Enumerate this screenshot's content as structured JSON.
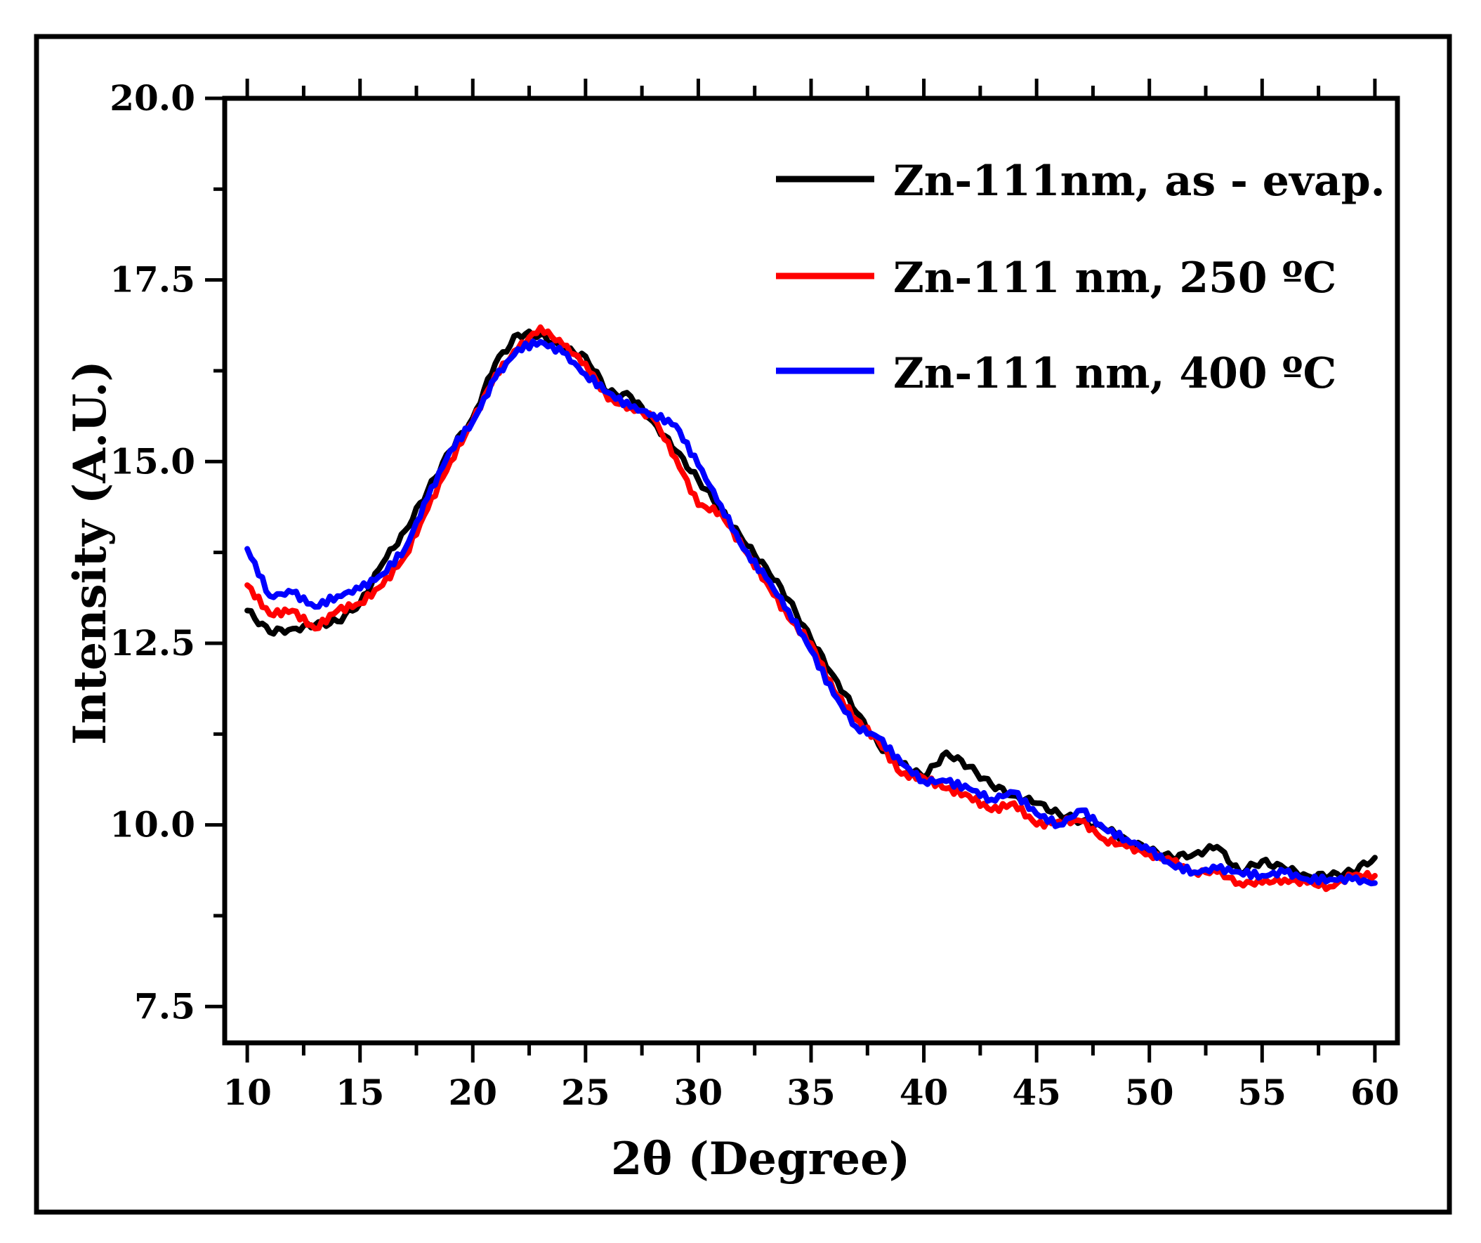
{
  "chart_data": {
    "type": "line",
    "title": "",
    "xlabel": "2θ (Degree)",
    "ylabel": "Intensity (A.U.)",
    "xlim": [
      9,
      61
    ],
    "ylim": [
      7,
      20
    ],
    "x_ticks": [
      10,
      15,
      20,
      25,
      30,
      35,
      40,
      45,
      50,
      55,
      60
    ],
    "x_tick_labels": [
      "10",
      "15",
      "20",
      "25",
      "30",
      "35",
      "40",
      "45",
      "50",
      "55",
      "60"
    ],
    "y_ticks": [
      7.5,
      10.0,
      12.5,
      15.0,
      17.5,
      20.0
    ],
    "y_tick_labels": [
      "7.5",
      "10.0",
      "12.5",
      "15.0",
      "17.5",
      "20.0"
    ],
    "grid": false,
    "legend_position": "top-right",
    "x": [
      10,
      11,
      12,
      13,
      14,
      15,
      16,
      17,
      18,
      19,
      20,
      21,
      22,
      23,
      24,
      25,
      26,
      27,
      28,
      29,
      30,
      31,
      32,
      33,
      34,
      35,
      36,
      37,
      38,
      39,
      40,
      41,
      42,
      43,
      44,
      45,
      46,
      47,
      48,
      49,
      50,
      51,
      52,
      53,
      54,
      55,
      56,
      57,
      58,
      59,
      60
    ],
    "series": [
      {
        "name": "Zn-111nm, as - evap.",
        "color": "#000000",
        "values": [
          12.95,
          12.65,
          12.7,
          12.75,
          12.8,
          13.05,
          13.6,
          14.05,
          14.6,
          15.15,
          15.6,
          16.35,
          16.75,
          16.75,
          16.55,
          16.45,
          15.95,
          15.9,
          15.55,
          15.15,
          14.75,
          14.35,
          13.9,
          13.55,
          13.1,
          12.55,
          12.05,
          11.55,
          11.1,
          10.85,
          10.65,
          11.0,
          10.8,
          10.55,
          10.4,
          10.3,
          10.15,
          10.05,
          9.95,
          9.8,
          9.65,
          9.55,
          9.6,
          9.7,
          9.35,
          9.5,
          9.4,
          9.3,
          9.3,
          9.35,
          9.55
        ]
      },
      {
        "name": "Zn-111 nm, 250 ºC",
        "color": "#ff0000",
        "values": [
          13.3,
          12.9,
          12.95,
          12.7,
          12.95,
          13.05,
          13.3,
          13.7,
          14.35,
          15.0,
          15.55,
          16.2,
          16.55,
          16.85,
          16.6,
          16.35,
          15.85,
          15.75,
          15.6,
          15.05,
          14.4,
          14.3,
          13.8,
          13.35,
          12.85,
          12.5,
          11.85,
          11.45,
          11.15,
          10.7,
          10.65,
          10.5,
          10.4,
          10.2,
          10.3,
          10.0,
          10.05,
          10.05,
          9.8,
          9.7,
          9.6,
          9.5,
          9.35,
          9.35,
          9.2,
          9.2,
          9.25,
          9.2,
          9.15,
          9.3,
          9.3
        ]
      },
      {
        "name": "Zn-111 nm, 400 ºC",
        "color": "#0000ff",
        "values": [
          13.8,
          13.15,
          13.2,
          13.0,
          13.15,
          13.25,
          13.45,
          13.8,
          14.5,
          15.15,
          15.55,
          16.15,
          16.55,
          16.65,
          16.5,
          16.2,
          15.95,
          15.75,
          15.65,
          15.5,
          14.95,
          14.4,
          13.8,
          13.4,
          12.95,
          12.4,
          11.8,
          11.35,
          11.2,
          10.85,
          10.6,
          10.6,
          10.5,
          10.35,
          10.45,
          10.15,
          10.0,
          10.2,
          9.95,
          9.8,
          9.65,
          9.45,
          9.35,
          9.4,
          9.35,
          9.3,
          9.35,
          9.25,
          9.25,
          9.25,
          9.2
        ]
      }
    ]
  }
}
